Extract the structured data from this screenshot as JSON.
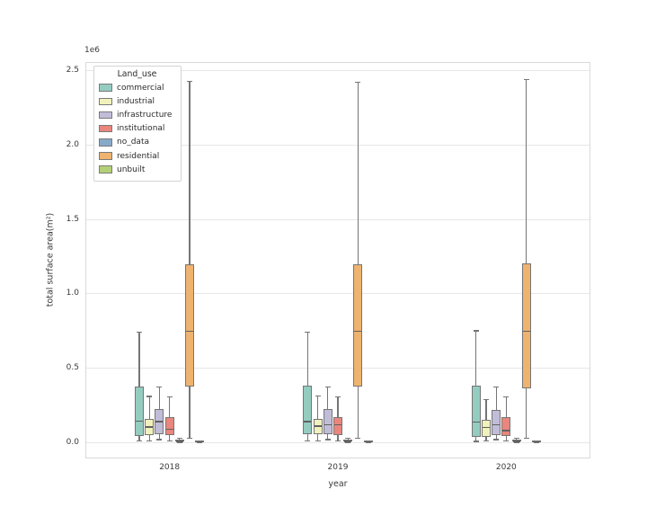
{
  "figure": {
    "offset_text": "1e6"
  },
  "legend": {
    "title": "Land_use",
    "items": [
      {
        "label": "commercial",
        "color": "#94ccc0"
      },
      {
        "label": "industrial",
        "color": "#f1f1bb"
      },
      {
        "label": "infrastructure",
        "color": "#c1bdd8"
      },
      {
        "label": "institutional",
        "color": "#e9867e"
      },
      {
        "label": "no_data",
        "color": "#88aac9"
      },
      {
        "label": "residential",
        "color": "#edb36f"
      },
      {
        "label": "unbuilt",
        "color": "#b4d077"
      }
    ]
  },
  "chart_data": {
    "type": "box",
    "title": "",
    "xlabel": "year",
    "ylabel": "total surface area(m²)",
    "y_offset_multiplier": "1e6",
    "x_categories": [
      "2018",
      "2019",
      "2020"
    ],
    "y_ticks": [
      {
        "label": "0.0",
        "value": 0
      },
      {
        "label": "0.5",
        "value": 500000
      },
      {
        "label": "1.0",
        "value": 1000000
      },
      {
        "label": "1.5",
        "value": 1500000
      },
      {
        "label": "2.0",
        "value": 2000000
      },
      {
        "label": "2.5",
        "value": 2500000
      }
    ],
    "ylim": [
      -110000,
      2555000
    ],
    "grid": "horizontal",
    "legend_position": "upper-left",
    "hue_title": "Land_use",
    "series": [
      {
        "name": "commercial",
        "color": "#94ccc0",
        "boxes": [
          {
            "year": "2018",
            "whisker_low": 12000,
            "q1": 42000,
            "median": 145000,
            "q3": 375000,
            "whisker_high": 740000
          },
          {
            "year": "2019",
            "whisker_low": 12000,
            "q1": 50000,
            "median": 142000,
            "q3": 378000,
            "whisker_high": 741000
          },
          {
            "year": "2020",
            "whisker_low": 8000,
            "q1": 37000,
            "median": 138000,
            "q3": 379000,
            "whisker_high": 752000
          }
        ]
      },
      {
        "name": "industrial",
        "color": "#f1f1bb",
        "boxes": [
          {
            "year": "2018",
            "whisker_low": 12000,
            "q1": 46000,
            "median": 105000,
            "q3": 158000,
            "whisker_high": 310000
          },
          {
            "year": "2019",
            "whisker_low": 12000,
            "q1": 50000,
            "median": 111000,
            "q3": 158000,
            "whisker_high": 313000
          },
          {
            "year": "2020",
            "whisker_low": 10000,
            "q1": 37000,
            "median": 101000,
            "q3": 152000,
            "whisker_high": 287000
          }
        ]
      },
      {
        "name": "infrastructure",
        "color": "#c1bdd8",
        "boxes": [
          {
            "year": "2018",
            "whisker_low": 20000,
            "q1": 51000,
            "median": 142000,
            "q3": 222000,
            "whisker_high": 376000
          },
          {
            "year": "2019",
            "whisker_low": 20000,
            "q1": 51000,
            "median": 118000,
            "q3": 222000,
            "whisker_high": 373000
          },
          {
            "year": "2020",
            "whisker_low": 20000,
            "q1": 47000,
            "median": 118000,
            "q3": 218000,
            "whisker_high": 373000
          }
        ]
      },
      {
        "name": "institutional",
        "color": "#e9867e",
        "boxes": [
          {
            "year": "2018",
            "whisker_low": 12000,
            "q1": 47000,
            "median": 91000,
            "q3": 166000,
            "whisker_high": 307000
          },
          {
            "year": "2019",
            "whisker_low": 12000,
            "q1": 45000,
            "median": 118000,
            "q3": 166000,
            "whisker_high": 307000
          },
          {
            "year": "2020",
            "whisker_low": 10000,
            "q1": 41000,
            "median": 81000,
            "q3": 166000,
            "whisker_high": 307000
          }
        ]
      },
      {
        "name": "no_data",
        "color": "#88aac9",
        "boxes": [
          {
            "year": "2018",
            "whisker_low": 1000,
            "q1": 4000,
            "median": 9000,
            "q3": 19000,
            "whisker_high": 30000
          },
          {
            "year": "2019",
            "whisker_low": 1000,
            "q1": 4000,
            "median": 9000,
            "q3": 19000,
            "whisker_high": 30000
          },
          {
            "year": "2020",
            "whisker_low": 1000,
            "q1": 4000,
            "median": 9000,
            "q3": 19000,
            "whisker_high": 30000
          }
        ]
      },
      {
        "name": "residential",
        "color": "#edb36f",
        "boxes": [
          {
            "year": "2018",
            "whisker_low": 30000,
            "q1": 372000,
            "median": 748000,
            "q3": 1195000,
            "whisker_high": 2430000
          },
          {
            "year": "2019",
            "whisker_low": 30000,
            "q1": 372000,
            "median": 748000,
            "q3": 1197000,
            "whisker_high": 2425000
          },
          {
            "year": "2020",
            "whisker_low": 30000,
            "q1": 363000,
            "median": 748000,
            "q3": 1203000,
            "whisker_high": 2440000
          }
        ]
      },
      {
        "name": "unbuilt",
        "color": "#b4d077",
        "boxes": [
          {
            "year": "2018",
            "whisker_low": 0,
            "q1": 2000,
            "median": 5000,
            "q3": 9000,
            "whisker_high": 13000
          },
          {
            "year": "2019",
            "whisker_low": 0,
            "q1": 2000,
            "median": 5000,
            "q3": 9000,
            "whisker_high": 13000
          },
          {
            "year": "2020",
            "whisker_low": 0,
            "q1": 2000,
            "median": 5000,
            "q3": 9000,
            "whisker_high": 13000
          }
        ]
      }
    ]
  }
}
